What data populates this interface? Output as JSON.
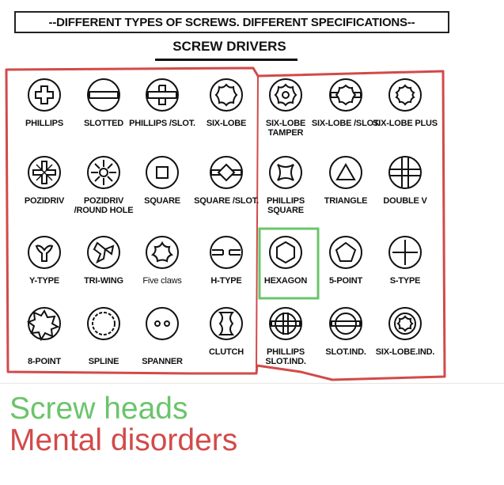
{
  "poster": {
    "title": "--DIFFERENT TYPES OF SCREWS. DIFFERENT SPECIFICATIONS--",
    "subtitle": "SCREW DRIVERS",
    "screws": [
      {
        "label": "PHILLIPS",
        "icon": "phillips-icon"
      },
      {
        "label": "SLOTTED",
        "icon": "slotted-icon"
      },
      {
        "label": "PHILLIPS /SLOT.",
        "icon": "phillips-slot-icon"
      },
      {
        "label": "SIX-LOBE",
        "icon": "six-lobe-icon"
      },
      {
        "label": "SIX-LOBE TAMPER",
        "icon": "six-lobe-tamper-icon"
      },
      {
        "label": "SIX-LOBE /SLOT.",
        "icon": "six-lobe-slot-icon"
      },
      {
        "label": "SIX-LOBE PLUS",
        "icon": "six-lobe-plus-icon"
      },
      {
        "label": "POZIDRIV",
        "icon": "pozidriv-icon"
      },
      {
        "label": "POZIDRIV /ROUND HOLE",
        "icon": "pozidriv-round-hole-icon"
      },
      {
        "label": "SQUARE",
        "icon": "square-icon"
      },
      {
        "label": "SQUARE /SLOT.",
        "icon": "square-slot-icon"
      },
      {
        "label": "PHILLIPS SQUARE",
        "icon": "phillips-square-icon"
      },
      {
        "label": "TRIANGLE",
        "icon": "triangle-icon"
      },
      {
        "label": "DOUBLE V",
        "icon": "double-v-icon"
      },
      {
        "label": "Y-TYPE",
        "icon": "y-type-icon"
      },
      {
        "label": "TRI-WING",
        "icon": "tri-wing-icon"
      },
      {
        "label": "Five claws",
        "icon": "five-claws-icon"
      },
      {
        "label": "H-TYPE",
        "icon": "h-type-icon"
      },
      {
        "label": "HEXAGON",
        "icon": "hexagon-icon"
      },
      {
        "label": "5-POINT",
        "icon": "five-point-icon"
      },
      {
        "label": "S-TYPE",
        "icon": "s-type-icon"
      },
      {
        "label": "8-POINT",
        "icon": "eight-point-icon"
      },
      {
        "label": "SPLINE",
        "icon": "spline-icon"
      },
      {
        "label": "SPANNER",
        "icon": "spanner-icon"
      },
      {
        "label": "CLUTCH",
        "icon": "clutch-icon"
      },
      {
        "label": "PHILLIPS SLOT.IND.",
        "icon": "phillips-slot-ind-icon"
      },
      {
        "label": "SLOT.IND.",
        "icon": "slot-ind-icon"
      },
      {
        "label": "SIX-LOBE.IND.",
        "icon": "six-lobe-ind-icon"
      }
    ]
  },
  "caption": {
    "line1": "Screw heads",
    "line2": "Mental disorders"
  },
  "colors": {
    "green": "#6bc46b",
    "red": "#d24a4a"
  }
}
